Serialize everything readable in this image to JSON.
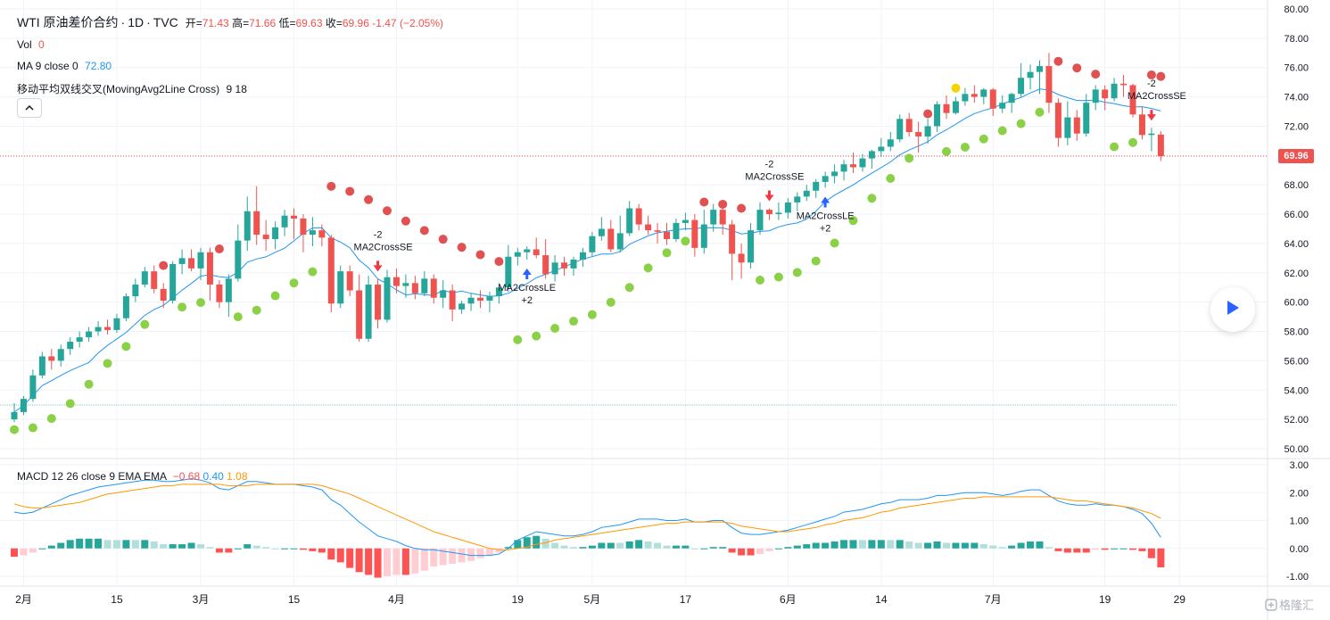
{
  "legend": {
    "symbol": "WTI 原油差价合约",
    "interval": "1D",
    "source": "TVC",
    "open_label": "开=",
    "open": "71.43",
    "high_label": "高=",
    "high": "71.66",
    "low_label": "低=",
    "low": "69.63",
    "close_label": "收=",
    "close": "69.96",
    "change": "-1.47",
    "change_pct": "(−2.05%)",
    "vol_label": "Vol",
    "vol_value": "0",
    "ma_label": "MA 9 close 0",
    "ma_value": "72.80",
    "strategy_label": "移动平均双线交叉(MovingAvg2Line Cross)",
    "strategy_params": "9 18",
    "macd_label": "MACD 12 26 close 9 EMA EMA",
    "macd_hist": "−0.68",
    "macd_line": "0.40",
    "macd_signal": "1.08"
  },
  "current_price": "69.96",
  "colors": {
    "up": "#26a69a",
    "down": "#ef5350",
    "ma": "#2196f3",
    "signal": "#ff9800",
    "dot_green": "#8bd147",
    "dot_red": "#e05252",
    "dot_yellow": "#f5d300"
  },
  "chart_data": {
    "type": "candlestick",
    "title": "WTI 原油差价合约 · 1D · TVC",
    "price_axis": {
      "min": 50,
      "max": 80,
      "ticks": [
        "80.00",
        "78.00",
        "76.00",
        "74.00",
        "72.00",
        "70.00",
        "68.00",
        "66.00",
        "64.00",
        "62.00",
        "60.00",
        "58.00",
        "56.00",
        "54.00",
        "52.00",
        "50.00"
      ]
    },
    "macd_axis": {
      "min": -1,
      "max": 3,
      "ticks": [
        "3.00",
        "2.00",
        "1.00",
        "0.00",
        "-1.00"
      ]
    },
    "time_axis": [
      {
        "label": "2月",
        "idx": 1
      },
      {
        "label": "15",
        "idx": 11
      },
      {
        "label": "3月",
        "idx": 20
      },
      {
        "label": "15",
        "idx": 30
      },
      {
        "label": "4月",
        "idx": 41
      },
      {
        "label": "19",
        "idx": 54
      },
      {
        "label": "5月",
        "idx": 62
      },
      {
        "label": "17",
        "idx": 72
      },
      {
        "label": "6月",
        "idx": 83
      },
      {
        "label": "14",
        "idx": 93
      },
      {
        "label": "7月",
        "idx": 105
      },
      {
        "label": "19",
        "idx": 117
      },
      {
        "label": "29",
        "idx": 125
      }
    ],
    "candles": [
      [
        52.0,
        53.1,
        51.8,
        52.5
      ],
      [
        52.5,
        53.6,
        52.3,
        53.4
      ],
      [
        53.4,
        55.4,
        53.2,
        55.0
      ],
      [
        55.0,
        56.6,
        54.8,
        56.3
      ],
      [
        56.3,
        56.8,
        55.4,
        56.0
      ],
      [
        56.0,
        57.1,
        55.6,
        56.8
      ],
      [
        56.8,
        57.6,
        56.4,
        57.3
      ],
      [
        57.3,
        58.0,
        56.9,
        57.6
      ],
      [
        57.6,
        58.3,
        57.3,
        58.0
      ],
      [
        58.0,
        58.7,
        57.7,
        58.3
      ],
      [
        58.3,
        58.8,
        57.8,
        58.1
      ],
      [
        58.1,
        59.2,
        57.9,
        58.9
      ],
      [
        58.9,
        60.6,
        58.7,
        60.4
      ],
      [
        60.4,
        61.6,
        60.0,
        61.2
      ],
      [
        61.2,
        62.4,
        61.0,
        62.1
      ],
      [
        62.1,
        62.5,
        60.6,
        60.9
      ],
      [
        60.9,
        61.3,
        59.6,
        60.1
      ],
      [
        60.1,
        62.8,
        59.9,
        62.6
      ],
      [
        62.6,
        63.6,
        61.9,
        63.0
      ],
      [
        63.0,
        63.6,
        62.1,
        62.3
      ],
      [
        62.3,
        63.7,
        61.5,
        63.4
      ],
      [
        63.4,
        63.7,
        60.1,
        61.2
      ],
      [
        61.2,
        61.5,
        59.6,
        60.0
      ],
      [
        60.0,
        61.9,
        59.0,
        61.6
      ],
      [
        61.6,
        65.3,
        61.4,
        64.2
      ],
      [
        64.2,
        67.2,
        63.5,
        66.2
      ],
      [
        66.2,
        67.9,
        63.9,
        64.6
      ],
      [
        64.6,
        65.6,
        63.5,
        64.3
      ],
      [
        64.3,
        65.5,
        63.6,
        65.1
      ],
      [
        65.1,
        66.3,
        64.5,
        65.9
      ],
      [
        65.9,
        66.4,
        64.3,
        65.7
      ],
      [
        65.7,
        66.0,
        63.4,
        64.6
      ],
      [
        64.6,
        65.8,
        63.8,
        64.9
      ],
      [
        64.9,
        65.3,
        63.8,
        64.4
      ],
      [
        64.4,
        64.6,
        59.3,
        59.9
      ],
      [
        59.9,
        62.5,
        59.6,
        62.1
      ],
      [
        62.1,
        62.5,
        60.4,
        60.8
      ],
      [
        60.8,
        61.9,
        57.3,
        57.5
      ],
      [
        57.5,
        61.8,
        57.3,
        61.2
      ],
      [
        61.2,
        61.6,
        58.2,
        58.8
      ],
      [
        58.8,
        62.2,
        58.6,
        61.7
      ],
      [
        61.7,
        62.3,
        60.6,
        61.1
      ],
      [
        61.1,
        61.9,
        60.3,
        61.3
      ],
      [
        61.3,
        61.8,
        60.2,
        60.6
      ],
      [
        60.6,
        62.1,
        60.4,
        61.6
      ],
      [
        61.6,
        61.9,
        59.9,
        60.3
      ],
      [
        60.3,
        61.5,
        59.6,
        60.8
      ],
      [
        60.8,
        61.2,
        58.7,
        59.5
      ],
      [
        59.5,
        60.1,
        59.2,
        59.9
      ],
      [
        59.9,
        60.6,
        59.4,
        60.3
      ],
      [
        60.3,
        60.8,
        59.6,
        60.1
      ],
      [
        60.1,
        60.7,
        59.3,
        60.4
      ],
      [
        60.4,
        61.3,
        59.9,
        61.0
      ],
      [
        61.0,
        63.9,
        60.7,
        63.1
      ],
      [
        63.1,
        63.7,
        62.5,
        63.4
      ],
      [
        63.4,
        63.8,
        62.9,
        63.6
      ],
      [
        63.6,
        64.4,
        63.0,
        63.2
      ],
      [
        63.2,
        64.3,
        61.6,
        61.9
      ],
      [
        61.9,
        63.2,
        61.4,
        62.7
      ],
      [
        62.7,
        63.1,
        61.8,
        62.3
      ],
      [
        62.3,
        63.1,
        61.8,
        62.9
      ],
      [
        62.9,
        63.7,
        62.4,
        63.4
      ],
      [
        63.4,
        64.8,
        63.1,
        64.5
      ],
      [
        64.5,
        65.8,
        64.2,
        65.0
      ],
      [
        65.0,
        65.6,
        63.4,
        63.6
      ],
      [
        63.6,
        65.9,
        63.4,
        64.7
      ],
      [
        64.7,
        66.9,
        64.5,
        66.4
      ],
      [
        66.4,
        66.7,
        64.9,
        65.3
      ],
      [
        65.3,
        65.9,
        64.6,
        64.9
      ],
      [
        64.9,
        65.4,
        64.0,
        64.8
      ],
      [
        64.8,
        65.4,
        63.9,
        64.3
      ],
      [
        64.3,
        65.7,
        64.1,
        65.4
      ],
      [
        65.4,
        66.1,
        64.9,
        65.6
      ],
      [
        65.6,
        66.0,
        63.1,
        63.7
      ],
      [
        63.7,
        66.3,
        63.3,
        65.3
      ],
      [
        65.3,
        66.7,
        64.8,
        66.3
      ],
      [
        66.3,
        66.5,
        64.6,
        65.3
      ],
      [
        65.3,
        65.6,
        61.5,
        63.3
      ],
      [
        63.3,
        64.0,
        61.6,
        62.7
      ],
      [
        62.7,
        65.4,
        62.3,
        64.9
      ],
      [
        64.9,
        66.8,
        64.6,
        66.3
      ],
      [
        66.3,
        66.4,
        65.6,
        66.0
      ],
      [
        66.0,
        66.8,
        65.6,
        66.1
      ],
      [
        66.1,
        67.1,
        65.7,
        66.8
      ],
      [
        66.8,
        67.5,
        66.2,
        67.2
      ],
      [
        67.2,
        68.0,
        66.9,
        67.6
      ],
      [
        67.6,
        68.4,
        67.1,
        68.2
      ],
      [
        68.2,
        68.9,
        67.8,
        68.6
      ],
      [
        68.6,
        69.4,
        68.1,
        68.9
      ],
      [
        68.9,
        69.7,
        68.3,
        69.4
      ],
      [
        69.4,
        70.2,
        68.8,
        69.2
      ],
      [
        69.2,
        70.1,
        68.9,
        69.8
      ],
      [
        69.8,
        70.4,
        69.1,
        70.3
      ],
      [
        70.3,
        71.2,
        69.9,
        70.6
      ],
      [
        70.6,
        71.6,
        70.3,
        71.1
      ],
      [
        71.1,
        72.8,
        70.9,
        72.5
      ],
      [
        72.5,
        72.9,
        71.3,
        71.6
      ],
      [
        71.6,
        72.3,
        70.2,
        71.3
      ],
      [
        71.3,
        72.5,
        70.8,
        72.0
      ],
      [
        72.0,
        73.7,
        71.6,
        73.5
      ],
      [
        73.5,
        74.1,
        72.5,
        72.9
      ],
      [
        72.9,
        74.0,
        72.8,
        73.7
      ],
      [
        73.7,
        74.6,
        73.4,
        74.2
      ],
      [
        74.2,
        74.8,
        73.6,
        74.0
      ],
      [
        74.0,
        74.6,
        73.5,
        74.5
      ],
      [
        74.5,
        74.6,
        72.7,
        73.2
      ],
      [
        73.2,
        74.1,
        72.9,
        73.6
      ],
      [
        73.6,
        74.3,
        72.9,
        74.2
      ],
      [
        74.2,
        76.3,
        74.0,
        75.3
      ],
      [
        75.3,
        76.2,
        74.5,
        75.7
      ],
      [
        75.7,
        76.5,
        74.2,
        76.1
      ],
      [
        76.1,
        77.0,
        72.9,
        73.6
      ],
      [
        73.6,
        73.9,
        70.6,
        71.2
      ],
      [
        71.2,
        73.7,
        70.7,
        72.6
      ],
      [
        72.6,
        73.1,
        71.0,
        71.5
      ],
      [
        71.5,
        74.2,
        71.3,
        73.6
      ],
      [
        73.6,
        74.8,
        73.1,
        74.5
      ],
      [
        74.5,
        74.8,
        73.1,
        73.9
      ],
      [
        73.9,
        75.3,
        73.7,
        74.9
      ],
      [
        74.9,
        75.5,
        74.0,
        74.8
      ],
      [
        74.8,
        74.9,
        72.6,
        72.8
      ],
      [
        72.8,
        73.3,
        71.1,
        71.4
      ],
      [
        71.4,
        71.9,
        70.3,
        71.5
      ],
      [
        71.43,
        71.66,
        69.63,
        69.96
      ]
    ],
    "markers": [
      {
        "type": "sell",
        "idx": 39,
        "label": "-2",
        "sub": "MA2CrossSE"
      },
      {
        "type": "buy",
        "idx": 55,
        "label": "+2",
        "sub": "MA2CrossLE"
      },
      {
        "type": "sell",
        "idx": 81,
        "label": "-2",
        "sub": "MA2CrossSE"
      },
      {
        "type": "buy",
        "idx": 87,
        "label": "+2",
        "sub": "MA2CrossLE"
      },
      {
        "type": "sell",
        "idx": 122,
        "label": "-2",
        "sub": "MA2CrossSE"
      }
    ],
    "macd": {
      "macd_line": [
        1.3,
        1.25,
        1.3,
        1.45,
        1.6,
        1.75,
        1.9,
        2.0,
        2.1,
        2.2,
        2.25,
        2.3,
        2.35,
        2.4,
        2.45,
        2.45,
        2.4,
        2.4,
        2.45,
        2.5,
        2.45,
        2.35,
        2.15,
        2.1,
        2.25,
        2.4,
        2.4,
        2.35,
        2.3,
        2.3,
        2.3,
        2.25,
        2.2,
        2.1,
        1.75,
        1.55,
        1.25,
        0.95,
        0.7,
        0.45,
        0.35,
        0.25,
        0.1,
        0.0,
        -0.05,
        -0.05,
        -0.1,
        -0.15,
        -0.2,
        -0.25,
        -0.25,
        -0.25,
        -0.2,
        0.0,
        0.3,
        0.45,
        0.6,
        0.55,
        0.5,
        0.45,
        0.45,
        0.5,
        0.6,
        0.75,
        0.8,
        0.85,
        0.95,
        1.05,
        1.05,
        1.05,
        1.0,
        1.0,
        1.05,
        0.95,
        0.95,
        1.0,
        1.0,
        0.75,
        0.55,
        0.5,
        0.5,
        0.55,
        0.6,
        0.65,
        0.75,
        0.85,
        0.95,
        1.05,
        1.15,
        1.3,
        1.35,
        1.4,
        1.5,
        1.6,
        1.65,
        1.75,
        1.75,
        1.75,
        1.8,
        1.9,
        1.9,
        1.95,
        2.0,
        2.0,
        2.0,
        1.95,
        1.9,
        1.95,
        2.05,
        2.1,
        2.1,
        1.9,
        1.7,
        1.6,
        1.55,
        1.55,
        1.6,
        1.55,
        1.55,
        1.5,
        1.4,
        1.25,
        0.9,
        0.4
      ],
      "signal": [
        1.6,
        1.5,
        1.45,
        1.45,
        1.5,
        1.55,
        1.6,
        1.65,
        1.75,
        1.85,
        1.95,
        2.0,
        2.05,
        2.1,
        2.15,
        2.2,
        2.25,
        2.25,
        2.3,
        2.3,
        2.3,
        2.3,
        2.3,
        2.25,
        2.25,
        2.25,
        2.3,
        2.3,
        2.3,
        2.3,
        2.3,
        2.3,
        2.3,
        2.25,
        2.15,
        2.05,
        1.95,
        1.8,
        1.65,
        1.5,
        1.35,
        1.2,
        1.05,
        0.9,
        0.75,
        0.6,
        0.5,
        0.4,
        0.3,
        0.2,
        0.1,
        0.0,
        -0.05,
        -0.05,
        0.0,
        0.05,
        0.15,
        0.2,
        0.3,
        0.35,
        0.4,
        0.45,
        0.5,
        0.55,
        0.6,
        0.65,
        0.7,
        0.75,
        0.8,
        0.85,
        0.9,
        0.9,
        0.95,
        0.95,
        0.95,
        0.95,
        0.95,
        0.9,
        0.8,
        0.75,
        0.7,
        0.65,
        0.6,
        0.6,
        0.65,
        0.7,
        0.75,
        0.85,
        0.9,
        1.0,
        1.05,
        1.1,
        1.2,
        1.3,
        1.35,
        1.45,
        1.5,
        1.55,
        1.6,
        1.65,
        1.7,
        1.75,
        1.8,
        1.8,
        1.85,
        1.85,
        1.85,
        1.85,
        1.85,
        1.85,
        1.85,
        1.85,
        1.8,
        1.75,
        1.7,
        1.7,
        1.65,
        1.6,
        1.55,
        1.5,
        1.45,
        1.35,
        1.25,
        1.08
      ]
    }
  }
}
